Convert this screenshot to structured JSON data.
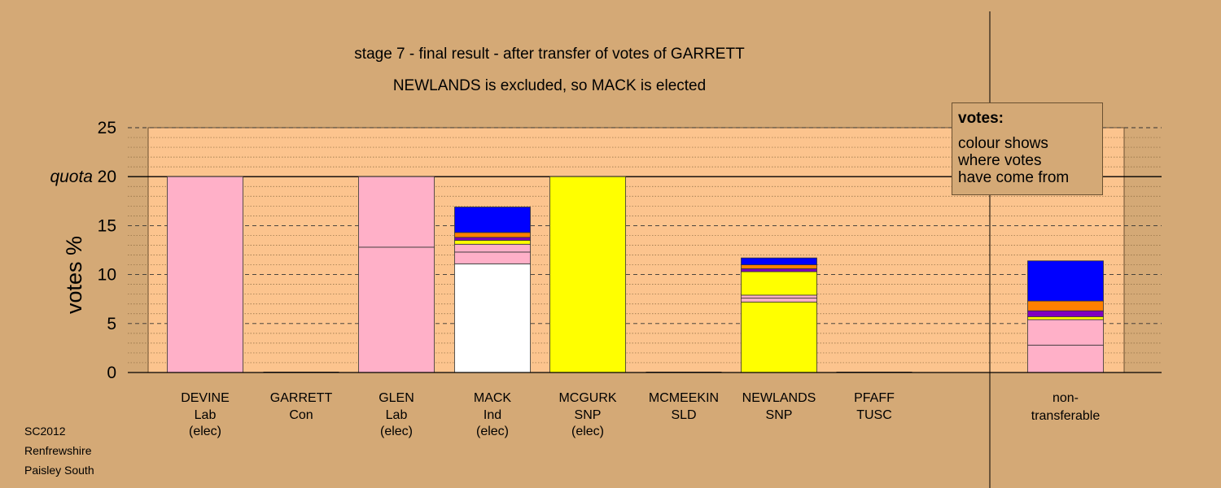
{
  "chart_data": {
    "type": "bar",
    "title": "stage 7 - final result - after transfer of votes of GARRETT",
    "subtitle": "NEWLANDS is excluded, so MACK is elected",
    "ylabel": "votes %",
    "ylim": [
      0,
      25
    ],
    "yticks": [
      "0",
      "5",
      "10",
      "15",
      "20",
      "25"
    ],
    "quota_label": "quota",
    "quota_value": 20,
    "grid": true,
    "candidates": [
      {
        "name": "DEVINE",
        "party": "Lab",
        "status": "(elec)",
        "segments": [
          {
            "color": "#FFB0C8",
            "value": 20.0
          }
        ]
      },
      {
        "name": "GARRETT",
        "party": "Con",
        "status": "",
        "segments": []
      },
      {
        "name": "GLEN",
        "party": "Lab",
        "status": "(elec)",
        "segments": [
          {
            "color": "#FFB0C8",
            "value": 12.8
          },
          {
            "color": "#FFB0C8",
            "value": 7.2
          }
        ]
      },
      {
        "name": "MACK",
        "party": "Ind",
        "status": "(elec)",
        "segments": [
          {
            "color": "#FFFFFF",
            "value": 11.1
          },
          {
            "color": "#FFB0C8",
            "value": 1.2
          },
          {
            "color": "#FFB0C8",
            "value": 0.8
          },
          {
            "color": "#FFFF00",
            "value": 0.4
          },
          {
            "color": "#8000C0",
            "value": 0.3
          },
          {
            "color": "#FF8000",
            "value": 0.5
          },
          {
            "color": "#0000FF",
            "value": 2.6
          }
        ]
      },
      {
        "name": "MCGURK",
        "party": "SNP",
        "status": "(elec)",
        "segments": [
          {
            "color": "#FFFF00",
            "value": 20.0
          }
        ]
      },
      {
        "name": "MCMEEKIN",
        "party": "SLD",
        "status": "",
        "segments": []
      },
      {
        "name": "NEWLANDS",
        "party": "SNP",
        "status": "",
        "segments": [
          {
            "color": "#FFFF00",
            "value": 7.2
          },
          {
            "color": "#FFB0C8",
            "value": 0.4
          },
          {
            "color": "#FFB0C8",
            "value": 0.3
          },
          {
            "color": "#FFFF00",
            "value": 2.4
          },
          {
            "color": "#8000C0",
            "value": 0.3
          },
          {
            "color": "#FF8000",
            "value": 0.4
          },
          {
            "color": "#0000FF",
            "value": 0.7
          }
        ]
      },
      {
        "name": "PFAFF",
        "party": "TUSC",
        "status": "",
        "segments": []
      },
      {
        "name": "non-",
        "party": "transferable",
        "status": "",
        "segments": [
          {
            "color": "#FFB0C8",
            "value": 2.8
          },
          {
            "color": "#FFB0C8",
            "value": 2.6
          },
          {
            "color": "#FFFF00",
            "value": 0.3
          },
          {
            "color": "#8000C0",
            "value": 0.6
          },
          {
            "color": "#FF8000",
            "value": 1.0
          },
          {
            "color": "#0000FF",
            "value": 4.1
          }
        ]
      }
    ],
    "legend": {
      "title": "votes:",
      "lines": [
        "colour shows",
        "where votes",
        "have come from"
      ]
    }
  },
  "footer": {
    "line1": "SC2012",
    "line2": "Renfrewshire",
    "line3": "Paisley South"
  },
  "colors": {
    "background": "#D4A976",
    "plot_area": "#FCC48E"
  }
}
